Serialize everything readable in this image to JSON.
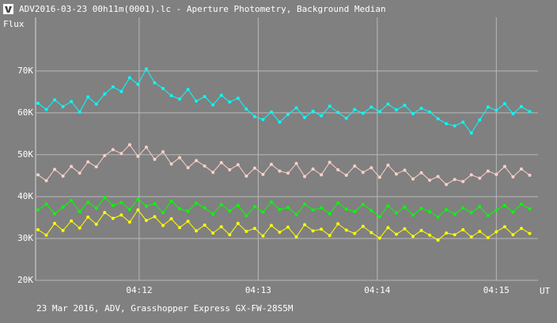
{
  "chart_data": {
    "type": "line",
    "title": "ADV2016-03-23 00h11m(0001).lc - Aperture Photometry, Background Median",
    "ylabel": "Flux",
    "xlabel": "UT",
    "footer": "23 Mar 2016, ADV, Grasshopper Express GX-FW-28S5M",
    "grid": true,
    "xlim": [
      251.13,
      255.35
    ],
    "xticks": [
      {
        "value": 252,
        "label": "04:12"
      },
      {
        "value": 253,
        "label": "04:13"
      },
      {
        "value": 254,
        "label": "04:14"
      },
      {
        "value": 255,
        "label": "04:15"
      }
    ],
    "ylim": [
      20000,
      82800
    ],
    "yticks": [
      {
        "value": 20000,
        "label": "20K"
      },
      {
        "value": 30000,
        "label": "30K"
      },
      {
        "value": 40000,
        "label": "40K"
      },
      {
        "value": 50000,
        "label": "50K"
      },
      {
        "value": 60000,
        "label": "60K"
      },
      {
        "value": 70000,
        "label": "70K"
      }
    ],
    "x": [
      251.15,
      251.22,
      251.29,
      251.36,
      251.43,
      251.5,
      251.57,
      251.64,
      251.71,
      251.78,
      251.85,
      251.92,
      251.99,
      252.06,
      252.13,
      252.2,
      252.27,
      252.34,
      252.41,
      252.48,
      252.55,
      252.62,
      252.69,
      252.76,
      252.83,
      252.9,
      252.97,
      253.04,
      253.11,
      253.18,
      253.25,
      253.32,
      253.39,
      253.46,
      253.53,
      253.6,
      253.67,
      253.74,
      253.81,
      253.88,
      253.95,
      254.02,
      254.09,
      254.16,
      254.23,
      254.3,
      254.37,
      254.44,
      254.51,
      254.58,
      254.65,
      254.72,
      254.79,
      254.86,
      254.93,
      255,
      255.07,
      255.14,
      255.21,
      255.28
    ],
    "series": [
      {
        "color": "#00ffff",
        "values": [
          62300,
          60800,
          63100,
          61500,
          62700,
          60200,
          63800,
          62100,
          64500,
          66200,
          65100,
          68400,
          66800,
          70500,
          67200,
          65800,
          64100,
          63300,
          65600,
          62800,
          63900,
          61900,
          64200,
          62600,
          63500,
          60900,
          59100,
          58400,
          60200,
          57800,
          59600,
          61200,
          58900,
          60400,
          59300,
          61600,
          60100,
          58700,
          60800,
          59900,
          61400,
          60300,
          62100,
          60700,
          61800,
          59800,
          61100,
          60200,
          58600,
          57400,
          56900,
          57800,
          55200,
          58300,
          61400,
          60600,
          62200,
          59800,
          61500,
          60300
        ]
      },
      {
        "color": "#ffd0c8",
        "values": [
          45200,
          43800,
          46500,
          44900,
          47200,
          45600,
          48300,
          47100,
          49800,
          51200,
          50300,
          52400,
          49600,
          51800,
          48900,
          50700,
          47800,
          49300,
          46900,
          48600,
          47300,
          45800,
          48100,
          46400,
          47600,
          44900,
          46800,
          45300,
          47700,
          46100,
          45600,
          47900,
          44800,
          46600,
          45200,
          48200,
          46400,
          45100,
          47300,
          45800,
          46900,
          44600,
          47500,
          45400,
          46300,
          44200,
          45700,
          43900,
          44800,
          42900,
          44100,
          43600,
          45200,
          44400,
          46100,
          45300,
          47200,
          44700,
          46600,
          45100
        ]
      },
      {
        "color": "#00ff00",
        "values": [
          36800,
          38200,
          35900,
          37500,
          39100,
          36400,
          38700,
          37200,
          39800,
          37900,
          38600,
          36900,
          39400,
          37700,
          38300,
          36200,
          38900,
          37100,
          36500,
          38400,
          37300,
          35800,
          38100,
          36600,
          37900,
          35400,
          37600,
          36300,
          38700,
          36900,
          37400,
          35700,
          38200,
          36800,
          37300,
          35900,
          38500,
          37000,
          36400,
          38100,
          36700,
          35200,
          37800,
          36100,
          37500,
          35600,
          37200,
          36400,
          35100,
          36900,
          35800,
          37300,
          36200,
          37600,
          35500,
          36800,
          37900,
          36300,
          38200,
          37100
        ]
      },
      {
        "color": "#ffff00",
        "values": [
          32100,
          30800,
          33600,
          31900,
          34200,
          32500,
          35100,
          33400,
          36200,
          34800,
          35600,
          33900,
          36800,
          34300,
          35200,
          33100,
          34700,
          32600,
          34100,
          31800,
          33200,
          31300,
          32800,
          30900,
          33600,
          31700,
          32400,
          30600,
          33100,
          31500,
          32700,
          30400,
          33300,
          31800,
          32200,
          30700,
          33500,
          32000,
          31200,
          32900,
          31400,
          30100,
          32600,
          31000,
          32300,
          30500,
          31900,
          30800,
          29600,
          31300,
          30900,
          32100,
          30400,
          31700,
          30200,
          31600,
          32800,
          30900,
          32400,
          31200
        ]
      }
    ]
  }
}
